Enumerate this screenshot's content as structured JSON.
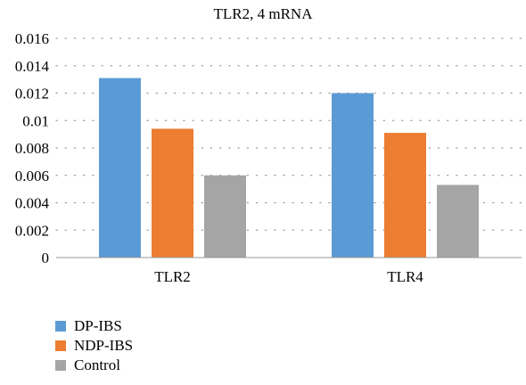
{
  "chart_data": {
    "type": "bar",
    "title": "TLR2, 4 mRNA",
    "xlabel": "",
    "ylabel": "",
    "categories": [
      "TLR2",
      "TLR4"
    ],
    "series": [
      {
        "name": "DP-IBS",
        "values": [
          0.0131,
          0.012
        ],
        "color": "#5b9bd5"
      },
      {
        "name": "NDP-IBS",
        "values": [
          0.0094,
          0.0091
        ],
        "color": "#ed7d31"
      },
      {
        "name": "Control",
        "values": [
          0.006,
          0.0053
        ],
        "color": "#a5a5a5"
      }
    ],
    "ylim": [
      0,
      0.016
    ],
    "yticks": [
      "0",
      "0.002",
      "0.004",
      "0.006",
      "0.008",
      "0.01",
      "0.012",
      "0.014",
      "0.016"
    ],
    "grid": "dotted horizontal",
    "legend_position": "bottom-left"
  }
}
